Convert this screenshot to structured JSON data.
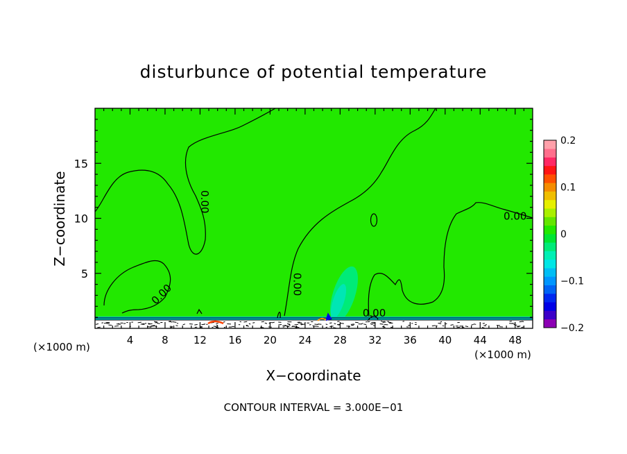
{
  "chart_data": {
    "type": "heatmap",
    "title": "disturbunce of potential temperature",
    "xlabel": "X−coordinate",
    "ylabel": "Z−coordinate",
    "x_unit_left": "(×1000 m)",
    "x_unit_right": "(×1000 m)",
    "xlim": [
      0,
      50
    ],
    "ylim": [
      0,
      20
    ],
    "x_ticks": [
      4,
      8,
      12,
      16,
      20,
      24,
      28,
      32,
      36,
      40,
      44,
      48
    ],
    "y_ticks": [
      5,
      10,
      15
    ],
    "background_value": 0.0,
    "background_color": "#22e800",
    "contour_labels": [
      {
        "text": "0.00",
        "x": 12.5,
        "z": 11.5,
        "angle": 90
      },
      {
        "text": "0.00",
        "x": 7.6,
        "z": 3.1,
        "angle": -45
      },
      {
        "text": "0.00",
        "x": 23.1,
        "z": 4.0,
        "angle": 90
      },
      {
        "text": "0.00",
        "x": 31.9,
        "z": 1.4,
        "angle": 0
      },
      {
        "text": "0.00",
        "x": 48.0,
        "z": 10.2,
        "angle": 0
      }
    ],
    "contour_interval": "CONTOUR INTERVAL = 3.000E−01",
    "colorbar": {
      "min": -0.2,
      "max": 0.2,
      "tick_labels": [
        "0.2",
        "0.1",
        "0",
        "−0.1",
        "−0.2"
      ],
      "tick_values": [
        0.2,
        0.1,
        0.0,
        -0.1,
        -0.2
      ],
      "colors": [
        "#8c00b4",
        "#3c00c8",
        "#0000e6",
        "#0028f0",
        "#0064f5",
        "#0096ff",
        "#00bef5",
        "#00e6e6",
        "#00f0b4",
        "#00eb78",
        "#00e632",
        "#22e800",
        "#64e600",
        "#aaf000",
        "#e6f000",
        "#f0be00",
        "#f58c00",
        "#ff5000",
        "#ff1414",
        "#ff2864",
        "#ff6e8c",
        "#ffa0aa"
      ]
    }
  }
}
